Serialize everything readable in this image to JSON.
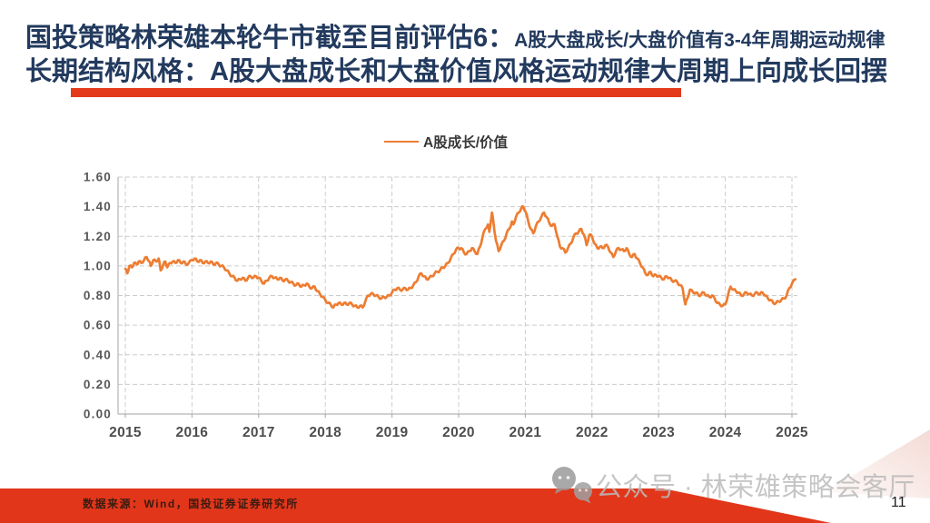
{
  "title": {
    "line1_main": "国投策略林荣雄本轮牛市截至目前评估6：",
    "line1_sub": "A股大盘成长/大盘价值有3-4年周期运动规律",
    "line2": "长期结构风格：A股大盘成长和大盘价值风格运动规律大周期上向成长回摆"
  },
  "colors": {
    "title_navy": "#223a5e",
    "accent_red": "#e2361a",
    "line_orange": "#ED7D31",
    "grid_gray": "#cccccc",
    "axis_gray": "#b3b3b3",
    "tick_label_gray": "#575757",
    "year_label_gray": "#4d4d4d"
  },
  "chart_data": {
    "type": "line",
    "legend": "A股成长/价值",
    "xlabel": "",
    "ylabel": "",
    "x_ticks": [
      2015,
      2016,
      2017,
      2018,
      2019,
      2020,
      2021,
      2022,
      2023,
      2024,
      2025
    ],
    "y_ticks": [
      0.0,
      0.2,
      0.4,
      0.6,
      0.8,
      1.0,
      1.2,
      1.4,
      1.6
    ],
    "ylim": [
      0,
      1.6
    ],
    "xlim": [
      2015,
      2025.1
    ],
    "grid": "dashed",
    "series": [
      {
        "name": "A股成长/价值",
        "color": "#ED7D31",
        "points": [
          [
            2015.0,
            0.98
          ],
          [
            2015.03,
            0.95
          ],
          [
            2015.06,
            1.0
          ],
          [
            2015.1,
            0.99
          ],
          [
            2015.13,
            1.02
          ],
          [
            2015.17,
            1.01
          ],
          [
            2015.2,
            1.03
          ],
          [
            2015.24,
            1.02
          ],
          [
            2015.28,
            1.04
          ],
          [
            2015.32,
            1.06
          ],
          [
            2015.36,
            1.03
          ],
          [
            2015.38,
            1.0
          ],
          [
            2015.42,
            1.04
          ],
          [
            2015.46,
            1.03
          ],
          [
            2015.5,
            1.05
          ],
          [
            2015.53,
            0.97
          ],
          [
            2015.57,
            1.01
          ],
          [
            2015.6,
            1.03
          ],
          [
            2015.63,
            0.99
          ],
          [
            2015.67,
            1.02
          ],
          [
            2015.71,
            1.03
          ],
          [
            2015.75,
            1.02
          ],
          [
            2015.79,
            1.04
          ],
          [
            2015.83,
            1.02
          ],
          [
            2015.87,
            1.03
          ],
          [
            2015.91,
            1.01
          ],
          [
            2015.95,
            1.02
          ],
          [
            2016.0,
            1.04
          ],
          [
            2016.04,
            1.05
          ],
          [
            2016.08,
            1.03
          ],
          [
            2016.12,
            1.04
          ],
          [
            2016.16,
            1.02
          ],
          [
            2016.2,
            1.03
          ],
          [
            2016.24,
            1.02
          ],
          [
            2016.28,
            1.03
          ],
          [
            2016.32,
            1.01
          ],
          [
            2016.36,
            1.02
          ],
          [
            2016.4,
            1.01
          ],
          [
            2016.44,
            1.0
          ],
          [
            2016.48,
            0.99
          ],
          [
            2016.52,
            0.97
          ],
          [
            2016.56,
            0.95
          ],
          [
            2016.6,
            0.93
          ],
          [
            2016.64,
            0.92
          ],
          [
            2016.68,
            0.9
          ],
          [
            2016.72,
            0.91
          ],
          [
            2016.76,
            0.92
          ],
          [
            2016.8,
            0.9
          ],
          [
            2016.84,
            0.92
          ],
          [
            2016.88,
            0.93
          ],
          [
            2016.92,
            0.92
          ],
          [
            2016.96,
            0.93
          ],
          [
            2017.0,
            0.92
          ],
          [
            2017.04,
            0.9
          ],
          [
            2017.08,
            0.88
          ],
          [
            2017.12,
            0.9
          ],
          [
            2017.16,
            0.92
          ],
          [
            2017.2,
            0.93
          ],
          [
            2017.24,
            0.92
          ],
          [
            2017.28,
            0.91
          ],
          [
            2017.32,
            0.92
          ],
          [
            2017.36,
            0.9
          ],
          [
            2017.4,
            0.91
          ],
          [
            2017.44,
            0.9
          ],
          [
            2017.48,
            0.89
          ],
          [
            2017.52,
            0.88
          ],
          [
            2017.56,
            0.87
          ],
          [
            2017.6,
            0.88
          ],
          [
            2017.64,
            0.86
          ],
          [
            2017.68,
            0.87
          ],
          [
            2017.72,
            0.88
          ],
          [
            2017.76,
            0.86
          ],
          [
            2017.8,
            0.85
          ],
          [
            2017.84,
            0.86
          ],
          [
            2017.88,
            0.83
          ],
          [
            2017.92,
            0.81
          ],
          [
            2017.96,
            0.79
          ],
          [
            2018.0,
            0.77
          ],
          [
            2018.04,
            0.75
          ],
          [
            2018.08,
            0.74
          ],
          [
            2018.12,
            0.72
          ],
          [
            2018.16,
            0.74
          ],
          [
            2018.2,
            0.75
          ],
          [
            2018.24,
            0.74
          ],
          [
            2018.28,
            0.75
          ],
          [
            2018.32,
            0.74
          ],
          [
            2018.36,
            0.75
          ],
          [
            2018.4,
            0.74
          ],
          [
            2018.44,
            0.73
          ],
          [
            2018.48,
            0.72
          ],
          [
            2018.52,
            0.73
          ],
          [
            2018.56,
            0.72
          ],
          [
            2018.6,
            0.76
          ],
          [
            2018.64,
            0.8
          ],
          [
            2018.68,
            0.81
          ],
          [
            2018.72,
            0.81
          ],
          [
            2018.76,
            0.8
          ],
          [
            2018.8,
            0.79
          ],
          [
            2018.84,
            0.78
          ],
          [
            2018.88,
            0.79
          ],
          [
            2018.92,
            0.79
          ],
          [
            2018.96,
            0.8
          ],
          [
            2019.0,
            0.82
          ],
          [
            2019.04,
            0.84
          ],
          [
            2019.08,
            0.85
          ],
          [
            2019.12,
            0.84
          ],
          [
            2019.16,
            0.84
          ],
          [
            2019.2,
            0.85
          ],
          [
            2019.24,
            0.84
          ],
          [
            2019.28,
            0.85
          ],
          [
            2019.32,
            0.87
          ],
          [
            2019.36,
            0.89
          ],
          [
            2019.4,
            0.93
          ],
          [
            2019.44,
            0.95
          ],
          [
            2019.48,
            0.93
          ],
          [
            2019.52,
            0.91
          ],
          [
            2019.56,
            0.92
          ],
          [
            2019.6,
            0.93
          ],
          [
            2019.64,
            0.95
          ],
          [
            2019.68,
            0.96
          ],
          [
            2019.72,
            0.97
          ],
          [
            2019.76,
            0.99
          ],
          [
            2019.8,
            1.0
          ],
          [
            2019.84,
            1.02
          ],
          [
            2019.88,
            1.05
          ],
          [
            2019.92,
            1.08
          ],
          [
            2019.96,
            1.11
          ],
          [
            2020.0,
            1.12
          ],
          [
            2020.04,
            1.12
          ],
          [
            2020.08,
            1.09
          ],
          [
            2020.12,
            1.08
          ],
          [
            2020.16,
            1.1
          ],
          [
            2020.2,
            1.12
          ],
          [
            2020.24,
            1.1
          ],
          [
            2020.28,
            1.08
          ],
          [
            2020.32,
            1.13
          ],
          [
            2020.36,
            1.2
          ],
          [
            2020.4,
            1.25
          ],
          [
            2020.44,
            1.28
          ],
          [
            2020.46,
            1.23
          ],
          [
            2020.5,
            1.36
          ],
          [
            2020.52,
            1.3
          ],
          [
            2020.56,
            1.17
          ],
          [
            2020.6,
            1.1
          ],
          [
            2020.64,
            1.14
          ],
          [
            2020.68,
            1.17
          ],
          [
            2020.72,
            1.22
          ],
          [
            2020.76,
            1.25
          ],
          [
            2020.8,
            1.3
          ],
          [
            2020.82,
            1.28
          ],
          [
            2020.86,
            1.33
          ],
          [
            2020.9,
            1.36
          ],
          [
            2020.94,
            1.39
          ],
          [
            2020.97,
            1.4
          ],
          [
            2021.0,
            1.37
          ],
          [
            2021.04,
            1.31
          ],
          [
            2021.08,
            1.25
          ],
          [
            2021.12,
            1.22
          ],
          [
            2021.16,
            1.27
          ],
          [
            2021.2,
            1.3
          ],
          [
            2021.24,
            1.33
          ],
          [
            2021.28,
            1.36
          ],
          [
            2021.32,
            1.33
          ],
          [
            2021.36,
            1.29
          ],
          [
            2021.4,
            1.27
          ],
          [
            2021.44,
            1.28
          ],
          [
            2021.48,
            1.2
          ],
          [
            2021.52,
            1.13
          ],
          [
            2021.56,
            1.12
          ],
          [
            2021.6,
            1.09
          ],
          [
            2021.64,
            1.12
          ],
          [
            2021.68,
            1.15
          ],
          [
            2021.72,
            1.19
          ],
          [
            2021.76,
            1.22
          ],
          [
            2021.8,
            1.23
          ],
          [
            2021.84,
            1.25
          ],
          [
            2021.88,
            1.21
          ],
          [
            2021.92,
            1.14
          ],
          [
            2021.96,
            1.21
          ],
          [
            2022.0,
            1.2
          ],
          [
            2022.04,
            1.15
          ],
          [
            2022.08,
            1.12
          ],
          [
            2022.12,
            1.13
          ],
          [
            2022.16,
            1.12
          ],
          [
            2022.2,
            1.14
          ],
          [
            2022.24,
            1.13
          ],
          [
            2022.28,
            1.09
          ],
          [
            2022.32,
            1.06
          ],
          [
            2022.36,
            1.1
          ],
          [
            2022.4,
            1.12
          ],
          [
            2022.44,
            1.11
          ],
          [
            2022.48,
            1.1
          ],
          [
            2022.52,
            1.12
          ],
          [
            2022.56,
            1.08
          ],
          [
            2022.6,
            1.06
          ],
          [
            2022.64,
            1.08
          ],
          [
            2022.68,
            1.05
          ],
          [
            2022.72,
            1.02
          ],
          [
            2022.76,
            0.99
          ],
          [
            2022.8,
            0.95
          ],
          [
            2022.84,
            0.94
          ],
          [
            2022.88,
            0.96
          ],
          [
            2022.92,
            0.93
          ],
          [
            2022.96,
            0.94
          ],
          [
            2023.0,
            0.93
          ],
          [
            2023.04,
            0.92
          ],
          [
            2023.08,
            0.91
          ],
          [
            2023.12,
            0.93
          ],
          [
            2023.16,
            0.92
          ],
          [
            2023.2,
            0.9
          ],
          [
            2023.24,
            0.9
          ],
          [
            2023.28,
            0.89
          ],
          [
            2023.32,
            0.87
          ],
          [
            2023.36,
            0.85
          ],
          [
            2023.4,
            0.74
          ],
          [
            2023.43,
            0.78
          ],
          [
            2023.47,
            0.84
          ],
          [
            2023.52,
            0.82
          ],
          [
            2023.56,
            0.82
          ],
          [
            2023.6,
            0.8
          ],
          [
            2023.64,
            0.81
          ],
          [
            2023.68,
            0.82
          ],
          [
            2023.72,
            0.8
          ],
          [
            2023.76,
            0.79
          ],
          [
            2023.8,
            0.8
          ],
          [
            2023.84,
            0.78
          ],
          [
            2023.88,
            0.75
          ],
          [
            2023.92,
            0.74
          ],
          [
            2023.96,
            0.73
          ],
          [
            2024.0,
            0.74
          ],
          [
            2024.04,
            0.8
          ],
          [
            2024.08,
            0.86
          ],
          [
            2024.12,
            0.84
          ],
          [
            2024.16,
            0.83
          ],
          [
            2024.2,
            0.82
          ],
          [
            2024.24,
            0.8
          ],
          [
            2024.28,
            0.81
          ],
          [
            2024.32,
            0.82
          ],
          [
            2024.36,
            0.81
          ],
          [
            2024.4,
            0.8
          ],
          [
            2024.44,
            0.81
          ],
          [
            2024.48,
            0.82
          ],
          [
            2024.52,
            0.81
          ],
          [
            2024.56,
            0.82
          ],
          [
            2024.6,
            0.8
          ],
          [
            2024.64,
            0.78
          ],
          [
            2024.68,
            0.77
          ],
          [
            2024.72,
            0.75
          ],
          [
            2024.76,
            0.75
          ],
          [
            2024.8,
            0.76
          ],
          [
            2024.84,
            0.77
          ],
          [
            2024.88,
            0.78
          ],
          [
            2024.92,
            0.8
          ],
          [
            2024.96,
            0.85
          ],
          [
            2025.0,
            0.88
          ],
          [
            2025.05,
            0.91
          ]
        ]
      }
    ]
  },
  "watermark": {
    "text": "公众号 · 林荣雄策略会客厅",
    "icon": "wechat-icon"
  },
  "footer": {
    "source": "数据来源：Wind，国投证券证券研究所",
    "page_number": "11"
  }
}
